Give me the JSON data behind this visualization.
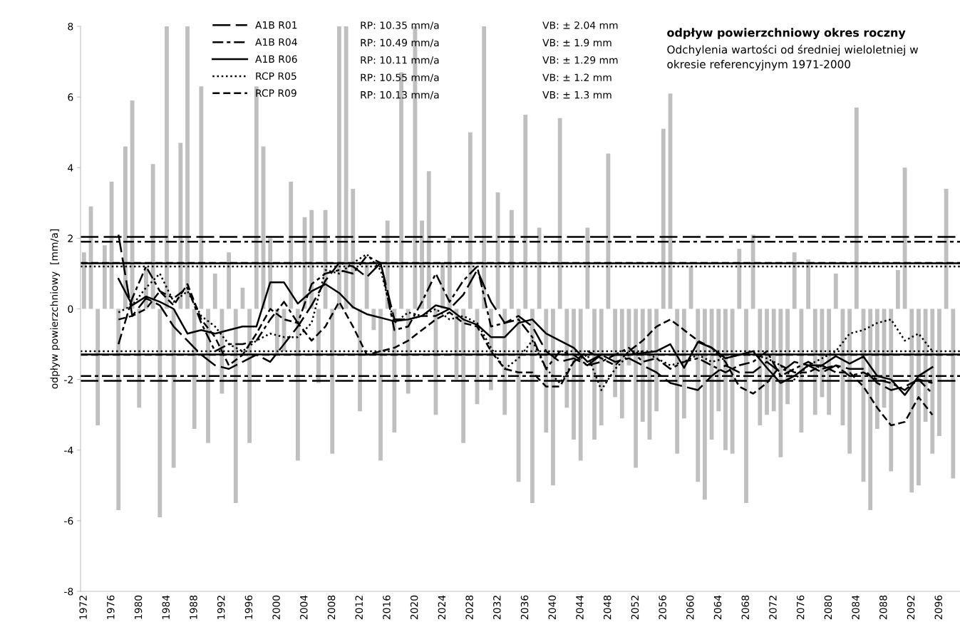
{
  "chart_data": {
    "type": "line",
    "title": "odpływ powierzchniowy okres roczny",
    "subtitle": "Odchylenia wartości od średniej wieloletniej w okresie referencyjnym 1971-2000",
    "ylabel": "odpływ powierzchniowy  [mm/a]",
    "xlim": [
      1971.5,
      2099
    ],
    "xticks": [
      1972,
      1976,
      1980,
      1984,
      1988,
      1992,
      1996,
      2000,
      2004,
      2008,
      2012,
      2016,
      2020,
      2024,
      2028,
      2032,
      2036,
      2040,
      2044,
      2048,
      2052,
      2056,
      2060,
      2064,
      2068,
      2072,
      2076,
      2080,
      2084,
      2088,
      2092,
      2096
    ],
    "ylim": [
      -8,
      8
    ],
    "yticks": [
      -8,
      -6,
      -4,
      -2,
      0,
      2,
      4,
      6,
      8
    ],
    "grid": false,
    "legend": "top",
    "marker": "none",
    "series": [
      {
        "type": "bar",
        "color": "#bfbfbf",
        "x": [
          1972,
          1973,
          1974,
          1975,
          1976,
          1977,
          1978,
          1979,
          1980,
          1981,
          1982,
          1983,
          1984,
          1985,
          1986,
          1987,
          1988,
          1989,
          1990,
          1991,
          1992,
          1993,
          1994,
          1995,
          1996,
          1997,
          1998,
          1999,
          2000,
          2001,
          2002,
          2003,
          2004,
          2005,
          2006,
          2007,
          2008,
          2009,
          2010,
          2011,
          2012,
          2013,
          2014,
          2015,
          2016,
          2017,
          2018,
          2019,
          2020,
          2021,
          2022,
          2023,
          2024,
          2025,
          2026,
          2027,
          2028,
          2029,
          2030,
          2031,
          2032,
          2033,
          2034,
          2035,
          2036,
          2037,
          2038,
          2039,
          2040,
          2041,
          2042,
          2043,
          2044,
          2045,
          2046,
          2047,
          2048,
          2049,
          2050,
          2051,
          2052,
          2053,
          2054,
          2055,
          2056,
          2057,
          2058,
          2059,
          2060,
          2061,
          2062,
          2063,
          2064,
          2065,
          2066,
          2067,
          2068,
          2069,
          2070,
          2071,
          2072,
          2073,
          2074,
          2075,
          2076,
          2077,
          2078,
          2079,
          2080,
          2081,
          2082,
          2083,
          2084,
          2085,
          2086,
          2087,
          2088,
          2089,
          2090,
          2091,
          2092,
          2093,
          2094,
          2095,
          2096,
          2097,
          2098
        ],
        "values": [
          1.6,
          2.9,
          -3.3,
          1.8,
          3.6,
          -5.7,
          4.6,
          5.9,
          -2.8,
          1.2,
          4.1,
          -5.9,
          8.0,
          -4.5,
          4.7,
          8.0,
          -3.4,
          6.3,
          -3.8,
          1.0,
          -2.4,
          1.6,
          -5.5,
          0.6,
          -3.8,
          6.3,
          4.6,
          2.0,
          -1.3,
          -1.2,
          3.6,
          -4.3,
          2.6,
          2.8,
          -2.1,
          2.8,
          -4.1,
          8.0,
          8.0,
          3.4,
          -2.9,
          1.3,
          -0.6,
          -4.3,
          2.5,
          -3.5,
          6.7,
          -2.4,
          8.0,
          2.5,
          3.9,
          -3.0,
          1.3,
          2.0,
          -2.0,
          -3.8,
          5.0,
          -2.7,
          8.0,
          -2.3,
          3.3,
          -3.0,
          2.8,
          -4.9,
          5.5,
          -5.5,
          2.3,
          -3.5,
          -5.0,
          5.4,
          -2.8,
          -3.7,
          -4.3,
          2.3,
          -3.7,
          -3.3,
          4.4,
          -2.5,
          -3.1,
          -1.6,
          -4.5,
          -3.2,
          -3.7,
          -2.9,
          5.1,
          6.1,
          -4.1,
          -3.1,
          1.2,
          -4.9,
          -5.4,
          -3.7,
          -2.9,
          -4.0,
          -4.1,
          1.7,
          -5.5,
          2.1,
          -3.3,
          -3.0,
          -2.9,
          -4.2,
          -2.7,
          1.6,
          -3.5,
          1.4,
          -3.0,
          -2.5,
          -3.0,
          1.0,
          -3.3,
          -4.1,
          5.7,
          -4.9,
          -5.7,
          -3.4,
          -2.8,
          -4.6,
          1.1,
          4.0,
          -5.2,
          -5.0,
          -3.2,
          -4.1,
          -3.6,
          3.4,
          -4.8
        ]
      },
      {
        "name": "A1B R01",
        "color": "#000000",
        "line_style": "longdash",
        "x": [
          1977,
          1979,
          1981,
          1983,
          1985,
          1987,
          1989,
          1991,
          1993,
          1995,
          1997,
          1999,
          2001,
          2003,
          2005,
          2007,
          2009,
          2011,
          2013,
          2015,
          2017,
          2019,
          2021,
          2023,
          2025,
          2027,
          2029,
          2031,
          2033,
          2035,
          2037,
          2039,
          2041,
          2043,
          2045,
          2047,
          2049,
          2051,
          2053,
          2055,
          2057,
          2059,
          2061,
          2063,
          2065,
          2067,
          2069,
          2071,
          2073,
          2075,
          2077,
          2079,
          2081,
          2083,
          2085,
          2087,
          2089,
          2091,
          2093,
          2095
        ],
        "values": [
          2.1,
          -0.2,
          0.3,
          0.1,
          -0.5,
          -0.9,
          -1.3,
          -1.6,
          -1.7,
          -1.5,
          -1.3,
          -1.5,
          -1.0,
          -0.5,
          0.1,
          0.8,
          1.3,
          1.2,
          0.9,
          1.3,
          -0.3,
          -0.3,
          -0.2,
          -0.2,
          0.0,
          0.4,
          1.1,
          0.2,
          -0.4,
          -0.2,
          -0.5,
          -1.2,
          -1.5,
          -1.4,
          -1.6,
          -1.3,
          -1.5,
          -1.4,
          -1.6,
          -1.8,
          -2.1,
          -2.2,
          -2.3,
          -1.9,
          -1.6,
          -1.8,
          -1.8,
          -1.5,
          -1.8,
          -1.5,
          -1.6,
          -1.8,
          -1.6,
          -1.7,
          -1.7,
          -2.1,
          -2.3,
          -2.2,
          -2.0,
          -2.1
        ]
      },
      {
        "name": "A1B R04",
        "color": "#000000",
        "line_style": "dashdot",
        "x": [
          1977,
          1979,
          1981,
          1983,
          1985,
          1987,
          1989,
          1991,
          1993,
          1995,
          1997,
          1999,
          2001,
          2003,
          2005,
          2007,
          2009,
          2011,
          2013,
          2015,
          2017,
          2019,
          2021,
          2023,
          2025,
          2027,
          2029,
          2031,
          2033,
          2035,
          2037,
          2039,
          2041,
          2043,
          2045,
          2047,
          2049,
          2051,
          2053,
          2055,
          2057,
          2059,
          2061,
          2063,
          2065,
          2067,
          2069,
          2071,
          2073,
          2075,
          2077,
          2079,
          2081,
          2083,
          2085,
          2087,
          2089,
          2091,
          2093,
          2095
        ],
        "values": [
          -1.0,
          0.3,
          1.2,
          0.5,
          0.3,
          0.6,
          -0.4,
          -1.2,
          -1.0,
          -1.0,
          -0.9,
          -0.3,
          0.2,
          -0.4,
          0.7,
          1.0,
          1.1,
          1.0,
          1.5,
          1.3,
          -0.6,
          -0.5,
          0.2,
          1.0,
          0.2,
          0.8,
          1.2,
          -0.5,
          -0.4,
          -0.3,
          -0.8,
          -1.7,
          -1.2,
          -1.3,
          -1.6,
          -1.5,
          -1.3,
          -1.1,
          -1.5,
          -1.4,
          -1.7,
          -1.5,
          -1.4,
          -1.6,
          -1.8,
          -1.6,
          -1.5,
          -1.2,
          -1.9,
          -1.7,
          -1.5,
          -1.7,
          -1.6,
          -1.9,
          -1.8,
          -2.0,
          -2.1,
          -2.3,
          -2.0,
          -2.4
        ]
      },
      {
        "name": "A1B R06",
        "color": "#000000",
        "line_style": "solid",
        "x": [
          1977,
          1979,
          1981,
          1983,
          1985,
          1987,
          1989,
          1991,
          1993,
          1995,
          1997,
          1999,
          2001,
          2003,
          2005,
          2007,
          2009,
          2011,
          2013,
          2015,
          2017,
          2019,
          2021,
          2023,
          2025,
          2027,
          2029,
          2031,
          2033,
          2035,
          2037,
          2039,
          2041,
          2043,
          2045,
          2047,
          2049,
          2051,
          2053,
          2055,
          2057,
          2059,
          2061,
          2063,
          2065,
          2067,
          2069,
          2071,
          2073,
          2075,
          2077,
          2079,
          2081,
          2083,
          2085,
          2087,
          2089,
          2091,
          2093,
          2095
        ],
        "values": [
          0.85,
          0.1,
          0.35,
          0.2,
          0.0,
          -0.7,
          -0.6,
          -0.7,
          -0.6,
          -0.5,
          -0.5,
          0.75,
          0.75,
          0.15,
          0.5,
          0.7,
          0.45,
          0.05,
          -0.15,
          -0.25,
          -0.35,
          -0.3,
          -0.2,
          0.1,
          0.0,
          -0.3,
          -0.45,
          -0.8,
          -0.8,
          -0.4,
          -0.3,
          -0.7,
          -0.9,
          -1.1,
          -1.5,
          -1.3,
          -1.3,
          -1.3,
          -1.25,
          -1.2,
          -1.0,
          -1.67,
          -0.94,
          -1.1,
          -1.4,
          -1.3,
          -1.2,
          -1.67,
          -2.1,
          -1.9,
          -1.6,
          -1.6,
          -1.34,
          -1.55,
          -1.35,
          -1.9,
          -2.0,
          -2.44,
          -1.9,
          -1.65
        ]
      },
      {
        "name": "RCP R05",
        "color": "#000000",
        "line_style": "dotted",
        "x": [
          1977,
          1979,
          1981,
          1983,
          1985,
          1987,
          1989,
          1991,
          1993,
          1995,
          1997,
          1999,
          2001,
          2003,
          2005,
          2007,
          2009,
          2011,
          2013,
          2015,
          2017,
          2019,
          2021,
          2023,
          2025,
          2027,
          2029,
          2031,
          2033,
          2035,
          2037,
          2039,
          2041,
          2043,
          2045,
          2047,
          2049,
          2051,
          2053,
          2055,
          2057,
          2059,
          2061,
          2063,
          2065,
          2067,
          2069,
          2071,
          2073,
          2075,
          2077,
          2079,
          2081,
          2083,
          2085,
          2087,
          2089,
          2091,
          2093,
          2095
        ],
        "values": [
          -0.1,
          0.1,
          0.6,
          1.0,
          0.2,
          0.5,
          -0.2,
          -0.5,
          -1.0,
          -1.2,
          -0.9,
          -0.7,
          -0.8,
          -0.8,
          -0.4,
          1.1,
          1.0,
          1.3,
          1.55,
          1.1,
          -0.4,
          -0.1,
          -0.2,
          0.0,
          -0.3,
          -0.2,
          -0.4,
          -1.1,
          -1.7,
          -1.4,
          -0.9,
          -1.7,
          -2.1,
          -1.5,
          -1.3,
          -2.3,
          -1.7,
          -1.3,
          -1.2,
          -1.4,
          -1.6,
          -1.5,
          -1.3,
          -1.5,
          -1.4,
          -1.3,
          -1.3,
          -1.4,
          -1.6,
          -2.0,
          -1.6,
          -1.4,
          -1.2,
          -0.7,
          -0.6,
          -0.4,
          -0.3,
          -0.9,
          -0.7,
          -1.2
        ]
      },
      {
        "name": "RCP R09",
        "color": "#000000",
        "line_style": "dashed",
        "x": [
          1977,
          1979,
          1981,
          1983,
          1985,
          1987,
          1989,
          1991,
          1993,
          1995,
          1997,
          1999,
          2001,
          2003,
          2005,
          2007,
          2009,
          2011,
          2013,
          2015,
          2017,
          2019,
          2021,
          2023,
          2025,
          2027,
          2029,
          2031,
          2033,
          2035,
          2037,
          2039,
          2041,
          2043,
          2045,
          2047,
          2049,
          2051,
          2053,
          2055,
          2057,
          2059,
          2061,
          2063,
          2065,
          2067,
          2069,
          2071,
          2073,
          2075,
          2077,
          2079,
          2081,
          2083,
          2085,
          2087,
          2089,
          2091,
          2093,
          2095
        ],
        "values": [
          -0.3,
          -0.2,
          0.0,
          0.5,
          0.1,
          0.7,
          -0.3,
          -0.8,
          -1.6,
          -1.3,
          -0.7,
          0.0,
          -0.3,
          -0.4,
          -0.9,
          -0.5,
          0.2,
          -0.5,
          -1.3,
          -1.2,
          -1.1,
          -0.9,
          -0.6,
          -0.3,
          -0.1,
          -0.4,
          -0.5,
          -1.2,
          -1.7,
          -1.8,
          -1.8,
          -2.2,
          -2.2,
          -1.5,
          -1.2,
          -1.4,
          -1.6,
          -1.2,
          -0.9,
          -0.5,
          -0.3,
          -0.6,
          -0.9,
          -1.1,
          -1.5,
          -2.2,
          -2.4,
          -2.1,
          -1.6,
          -1.8,
          -1.8,
          -1.6,
          -1.8,
          -1.8,
          -2.2,
          -2.8,
          -3.3,
          -3.2,
          -2.5,
          -3.0
        ]
      }
    ],
    "ref_lines": [
      {
        "axis": "y",
        "value": 2.04,
        "color": "#000000",
        "line_style": "longdash"
      },
      {
        "axis": "y",
        "value": -2.04,
        "color": "#000000",
        "line_style": "longdash"
      },
      {
        "axis": "y",
        "value": 1.9,
        "color": "#000000",
        "line_style": "dashdot"
      },
      {
        "axis": "y",
        "value": -1.9,
        "color": "#000000",
        "line_style": "dashdot"
      },
      {
        "axis": "y",
        "value": 1.29,
        "color": "#000000",
        "line_style": "solid"
      },
      {
        "axis": "y",
        "value": -1.29,
        "color": "#000000",
        "line_style": "solid"
      },
      {
        "axis": "y",
        "value": 1.2,
        "color": "#000000",
        "line_style": "dotted"
      },
      {
        "axis": "y",
        "value": -1.2,
        "color": "#000000",
        "line_style": "dotted"
      },
      {
        "axis": "y",
        "value": 1.3,
        "color": "#000000",
        "line_style": "dashed"
      },
      {
        "axis": "y",
        "value": -1.3,
        "color": "#000000",
        "line_style": "dashed"
      }
    ],
    "annotations": [
      "RP: 10.35 mm/a",
      "RP: 10.49 mm/a",
      "RP: 10.11 mm/a",
      "RP: 10.55 mm/a",
      "RP: 10.13 mm/a",
      "VB: ± 2.04 mm",
      "VB: ± 1.9 mm",
      "VB: ± 1.29 mm",
      "VB: ± 1.2 mm",
      "VB: ± 1.3 mm"
    ]
  }
}
